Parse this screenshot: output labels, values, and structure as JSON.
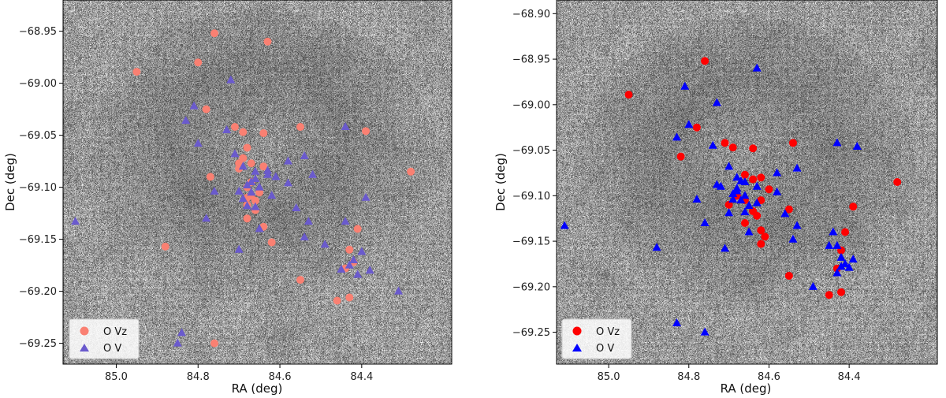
{
  "chart_data": [
    {
      "type": "scatter",
      "panel": "left",
      "xlabel": "RA (deg)",
      "ylabel": "Dec (deg)",
      "xlim": [
        85.13,
        84.18
      ],
      "ylim": [
        -69.27,
        -68.92
      ],
      "xticks": [
        85.0,
        84.8,
        84.6,
        84.4
      ],
      "xtick_labels": [
        "85.0",
        "84.8",
        "84.6",
        "84.4"
      ],
      "yticks": [
        -68.95,
        -69.0,
        -69.05,
        -69.1,
        -69.15,
        -69.2,
        -69.25
      ],
      "ytick_labels": [
        "−68.95",
        "−69.00",
        "−69.05",
        "−69.10",
        "−69.15",
        "−69.20",
        "−69.25"
      ],
      "legend_position": "lower-left",
      "series": [
        {
          "name": "O Vz",
          "marker": "circle",
          "color": "#fa8072",
          "x": [
            84.95,
            84.76,
            84.63,
            84.8,
            84.78,
            84.71,
            84.69,
            84.64,
            84.55,
            84.39,
            84.68,
            84.7,
            84.69,
            84.67,
            84.64,
            84.77,
            84.65,
            84.68,
            84.66,
            84.67,
            84.68,
            84.67,
            84.68,
            84.66,
            84.64,
            84.62,
            84.88,
            84.43,
            84.42,
            84.44,
            84.55,
            84.46,
            84.43,
            84.76,
            84.28,
            84.41,
            84.68,
            84.7
          ],
          "y": [
            -68.989,
            -68.952,
            -68.96,
            -68.98,
            -69.025,
            -69.042,
            -69.047,
            -69.048,
            -69.042,
            -69.046,
            -69.062,
            -69.077,
            -69.072,
            -69.077,
            -69.08,
            -69.09,
            -69.105,
            -69.117,
            -69.122,
            -69.108,
            -69.11,
            -69.095,
            -69.1,
            -69.113,
            -69.138,
            -69.153,
            -69.157,
            -69.16,
            -69.172,
            -69.178,
            -69.189,
            -69.209,
            -69.206,
            -69.25,
            -69.085,
            -69.14,
            -69.13,
            -69.082
          ]
        },
        {
          "name": "O V",
          "marker": "triangle",
          "color": "#6a5acd",
          "x": [
            84.72,
            84.81,
            84.83,
            84.8,
            84.73,
            84.71,
            84.69,
            84.66,
            84.58,
            84.54,
            84.52,
            84.44,
            84.68,
            84.67,
            84.66,
            84.65,
            84.69,
            84.7,
            84.66,
            84.68,
            84.67,
            84.63,
            84.61,
            84.58,
            84.56,
            84.53,
            84.39,
            84.7,
            84.65,
            84.78,
            84.76,
            84.63,
            84.62,
            84.54,
            84.49,
            84.44,
            84.43,
            84.42,
            84.45,
            84.41,
            84.4,
            84.38,
            84.31,
            85.1,
            84.84,
            84.85
          ],
          "y": [
            -68.997,
            -69.022,
            -69.036,
            -69.058,
            -69.045,
            -69.068,
            -69.08,
            -69.085,
            -69.075,
            -69.07,
            -69.088,
            -69.042,
            -69.098,
            -69.105,
            -69.092,
            -69.1,
            -69.111,
            -69.104,
            -69.119,
            -69.118,
            -69.095,
            -69.084,
            -69.09,
            -69.096,
            -69.12,
            -69.133,
            -69.11,
            -69.16,
            -69.14,
            -69.13,
            -69.104,
            -69.088,
            -69.108,
            -69.148,
            -69.155,
            -69.133,
            -69.175,
            -69.17,
            -69.179,
            -69.184,
            -69.162,
            -69.18,
            -69.2,
            -69.133,
            -69.24,
            -69.25
          ]
        }
      ]
    },
    {
      "type": "scatter",
      "panel": "right",
      "xlabel": "RA (deg)",
      "ylabel": "Dec (deg)",
      "xlim": [
        85.13,
        84.18
      ],
      "ylim": [
        -69.285,
        -68.885
      ],
      "xticks": [
        85.0,
        84.8,
        84.6,
        84.4
      ],
      "xtick_labels": [
        "85.0",
        "84.8",
        "84.6",
        "84.4"
      ],
      "yticks": [
        -68.9,
        -68.95,
        -69.0,
        -69.05,
        -69.1,
        -69.15,
        -69.2,
        -69.25
      ],
      "ytick_labels": [
        "−68.90",
        "−68.95",
        "−69.00",
        "−69.05",
        "−69.10",
        "−69.15",
        "−69.20",
        "−69.25"
      ],
      "legend_position": "lower-left",
      "series": [
        {
          "name": "O Vz",
          "marker": "circle",
          "color": "#ff0000",
          "x": [
            84.95,
            84.76,
            84.82,
            84.78,
            84.71,
            84.69,
            84.64,
            84.54,
            84.66,
            84.64,
            84.62,
            84.6,
            84.66,
            84.64,
            84.63,
            84.62,
            84.55,
            84.62,
            84.62,
            84.66,
            84.61,
            84.55,
            84.45,
            84.42,
            84.43,
            84.28,
            84.39,
            84.41,
            84.42,
            84.68,
            84.7
          ],
          "y": [
            -68.989,
            -68.952,
            -69.057,
            -69.025,
            -69.042,
            -69.047,
            -69.048,
            -69.042,
            -69.077,
            -69.082,
            -69.08,
            -69.093,
            -69.105,
            -69.117,
            -69.122,
            -69.105,
            -69.115,
            -69.138,
            -69.153,
            -69.13,
            -69.145,
            -69.188,
            -69.209,
            -69.206,
            -69.18,
            -69.085,
            -69.112,
            -69.14,
            -69.16,
            -69.1,
            -69.11
          ]
        },
        {
          "name": "O V",
          "marker": "triangle",
          "color": "#0000ff",
          "x": [
            84.63,
            84.81,
            84.73,
            84.83,
            84.8,
            84.74,
            84.7,
            84.68,
            84.66,
            84.58,
            84.53,
            84.43,
            84.38,
            84.72,
            84.69,
            84.67,
            84.68,
            84.66,
            84.65,
            84.69,
            84.7,
            84.66,
            84.68,
            84.67,
            84.63,
            84.58,
            84.56,
            84.53,
            84.76,
            84.71,
            84.65,
            84.78,
            84.73,
            84.63,
            84.54,
            84.44,
            84.43,
            84.42,
            84.41,
            84.39,
            84.4,
            84.45,
            84.43,
            84.49,
            84.42,
            85.11,
            84.88,
            84.83,
            84.76
          ],
          "y": [
            -68.96,
            -68.98,
            -68.998,
            -69.036,
            -69.022,
            -69.045,
            -69.068,
            -69.08,
            -69.085,
            -69.075,
            -69.07,
            -69.042,
            -69.046,
            -69.09,
            -69.098,
            -69.105,
            -69.092,
            -69.1,
            -69.111,
            -69.104,
            -69.119,
            -69.118,
            -69.095,
            -69.084,
            -69.09,
            -69.096,
            -69.12,
            -69.133,
            -69.13,
            -69.158,
            -69.14,
            -69.104,
            -69.088,
            -69.108,
            -69.148,
            -69.14,
            -69.155,
            -69.168,
            -69.175,
            -69.17,
            -69.179,
            -69.155,
            -69.185,
            -69.2,
            -69.178,
            -69.133,
            -69.157,
            -69.24,
            -69.25
          ]
        }
      ]
    }
  ]
}
